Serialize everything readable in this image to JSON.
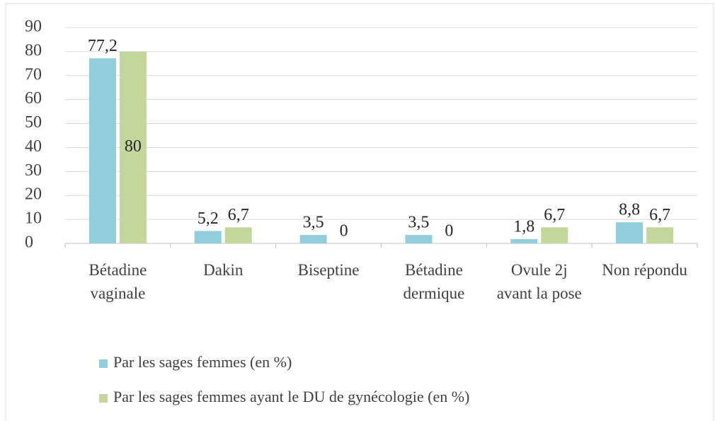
{
  "chart_data": {
    "type": "bar",
    "categories": [
      "Bétadine vaginale",
      "Dakin",
      "Biseptine",
      "Bétadine dermique",
      "Ovule 2j avant la pose",
      "Non répondu"
    ],
    "series": [
      {
        "name": "Par les sages femmes (en %)",
        "color": "#92cddc",
        "values": [
          77.2,
          5.2,
          3.5,
          3.5,
          1.8,
          8.8
        ],
        "value_labels": [
          "77,2",
          "5,2",
          "3,5",
          "3,5",
          "1,8",
          "8,8"
        ]
      },
      {
        "name": "Par les sages femmes ayant le DU de gynécologie (en %)",
        "color": "#c3d69b",
        "values": [
          80,
          6.7,
          0,
          0,
          6.7,
          6.7
        ],
        "value_labels": [
          "80",
          "6,7",
          "0",
          "0",
          "6,7",
          "6,7"
        ]
      }
    ],
    "ylim": [
      0,
      90
    ],
    "yticks": [
      0,
      10,
      20,
      30,
      40,
      50,
      60,
      70,
      80,
      90
    ],
    "grid": true,
    "legend": "bottom"
  }
}
